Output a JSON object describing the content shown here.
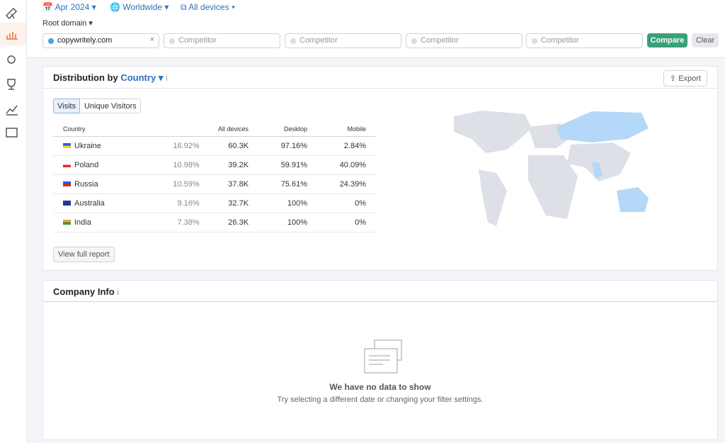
{
  "filters": {
    "date": "Apr 2024",
    "region": "Worldwide",
    "device": "All devices",
    "domain_type": "Root domain"
  },
  "domains": [
    "copywritely.com",
    "Competitor",
    "Competitor",
    "Competitor",
    "Competitor"
  ],
  "buttons": {
    "compare": "Compare",
    "clear": "Clear"
  },
  "distribution": {
    "title": "Distribution by",
    "title_link": "Country",
    "export": "Export",
    "tabs": [
      "Visits",
      "Unique Visitors"
    ],
    "headers": [
      "Country",
      "All devices",
      "Desktop",
      "Mobile"
    ],
    "rows": [
      [
        "Ukraine",
        "16.92%",
        "60.3K",
        "97.16%",
        "2.84%"
      ],
      [
        "Poland",
        "10.98%",
        "39.2K",
        "59.91%",
        "40.09%"
      ],
      [
        "Russia",
        "10.59%",
        "37.8K",
        "75.61%",
        "24.39%"
      ],
      [
        "Australia",
        "9.16%",
        "32.7K",
        "100%",
        "0%"
      ],
      [
        "India",
        "7.38%",
        "26.3K",
        "100%",
        "0%"
      ]
    ],
    "full_report": "View full report"
  },
  "company": {
    "title": "Company Info",
    "empty_title": "We have no data to show",
    "empty_text": "Try selecting a different date or changing your filter settings."
  }
}
